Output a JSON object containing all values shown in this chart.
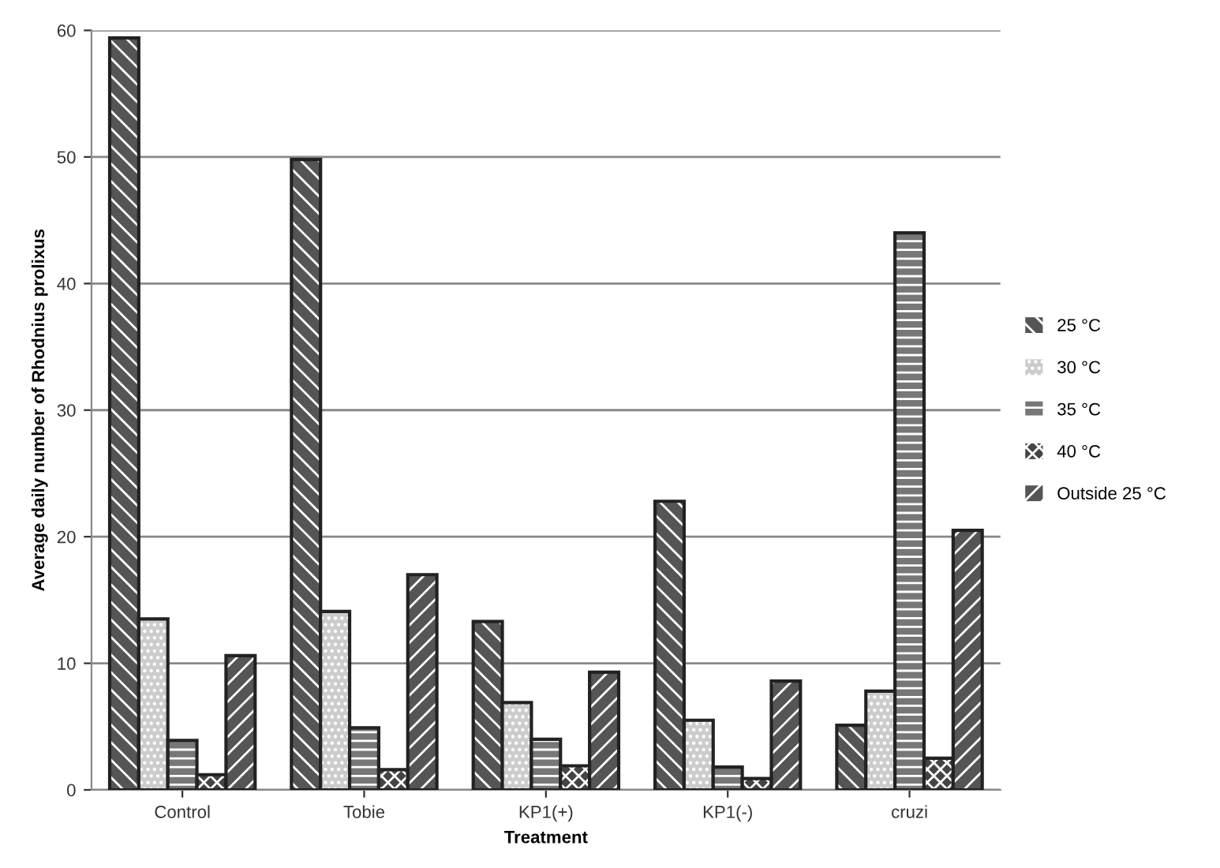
{
  "chart_data": {
    "type": "bar",
    "xlabel": "Treatment",
    "ylabel": "Average daily number of Rhodnius prolixus",
    "categories": [
      "Control",
      "Tobie",
      "KP1(+)",
      "KP1(-)",
      "cruzi"
    ],
    "series": [
      {
        "name": "25 °C",
        "color": "#555555",
        "values": [
          59.4,
          49.8,
          13.3,
          22.8,
          5.1
        ]
      },
      {
        "name": "30 °C",
        "color": "#cccccc",
        "values": [
          13.5,
          14.1,
          6.9,
          5.5,
          7.8
        ]
      },
      {
        "name": "35 °C",
        "color": "#777777",
        "values": [
          3.9,
          4.9,
          4.0,
          1.8,
          44.0
        ]
      },
      {
        "name": "40 °C",
        "color": "#444444",
        "values": [
          1.2,
          1.6,
          1.9,
          0.9,
          2.5
        ]
      },
      {
        "name": "Outside 25 °C",
        "color": "#555555",
        "values": [
          10.6,
          17.0,
          9.3,
          8.6,
          20.5
        ]
      }
    ],
    "ylim": [
      0,
      60
    ],
    "yticks": [
      0,
      10,
      20,
      30,
      40,
      50,
      60
    ],
    "grid": "y",
    "legend": "right"
  }
}
